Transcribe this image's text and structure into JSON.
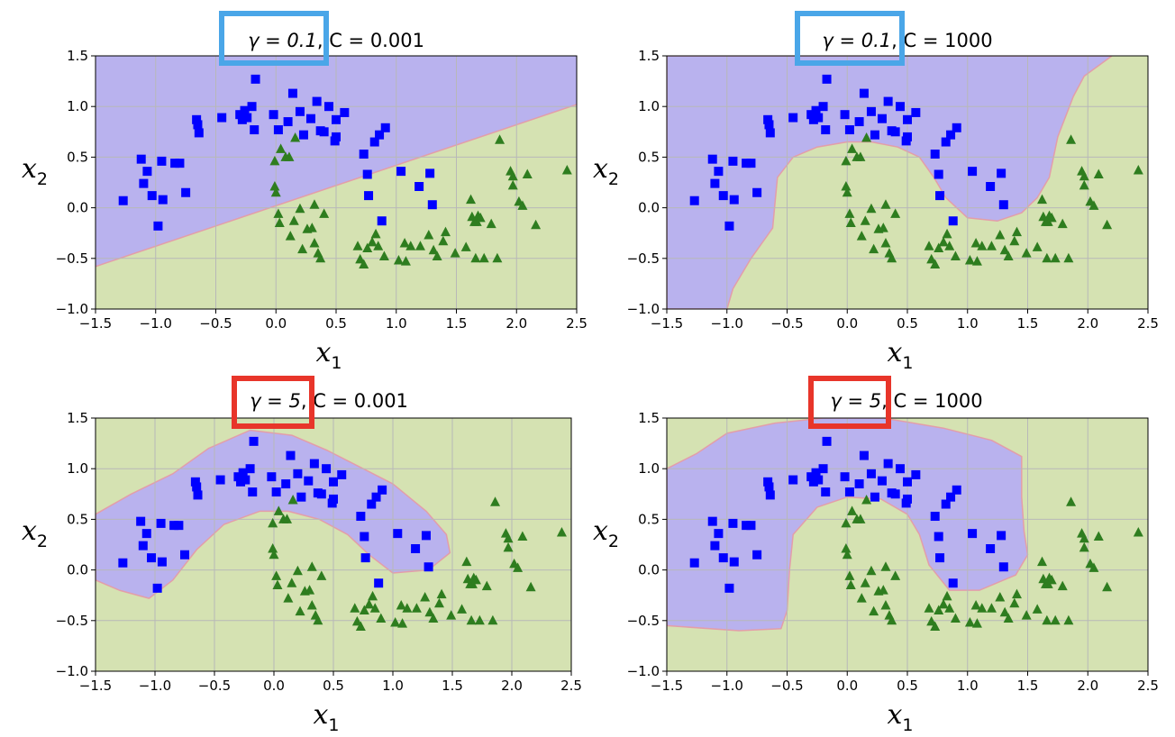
{
  "chart_data": [
    {
      "type": "scatter",
      "title": "γ = 0.1, C = 0.001",
      "gamma_label": "γ = 0.1",
      "c_label": "C = 0.001",
      "highlight_color": "#4aa6e8",
      "xlabel": "x",
      "xlabel_sub": "1",
      "ylabel": "x",
      "ylabel_sub": "2",
      "xlim": [
        -1.5,
        2.5
      ],
      "ylim": [
        -1.0,
        1.5
      ],
      "xticks": [
        "−1.5",
        "−1.0",
        "−0.5",
        "0.0",
        "0.5",
        "1.0",
        "1.5",
        "2.0",
        "2.5"
      ],
      "yticks": [
        "−1.0",
        "−0.5",
        "0.0",
        "0.5",
        "1.0",
        "1.5"
      ],
      "grid": true,
      "boundary": "linear",
      "boundary_points": [
        [
          -1.5,
          -0.58
        ],
        [
          2.5,
          1.02
        ]
      ]
    },
    {
      "type": "scatter",
      "title": "γ = 0.1, C = 1000",
      "gamma_label": "γ = 0.1",
      "c_label": "C = 1000",
      "highlight_color": "#4aa6e8",
      "xlabel": "x",
      "xlabel_sub": "1",
      "ylabel": "x",
      "ylabel_sub": "2",
      "xlim": [
        -1.5,
        2.5
      ],
      "ylim": [
        -1.0,
        1.5
      ],
      "xticks": [
        "−1.5",
        "−1.0",
        "−0.5",
        "0.0",
        "0.5",
        "1.0",
        "1.5",
        "2.0",
        "2.5"
      ],
      "yticks": [
        "−1.0",
        "−0.5",
        "0.0",
        "0.5",
        "1.0",
        "1.5"
      ],
      "grid": true,
      "boundary": "region",
      "blue_region": [
        [
          -1.5,
          1.5
        ],
        [
          2.2,
          1.5
        ],
        [
          1.97,
          1.3
        ],
        [
          1.88,
          1.1
        ],
        [
          1.75,
          0.7
        ],
        [
          1.68,
          0.3
        ],
        [
          1.58,
          0.1
        ],
        [
          1.45,
          -0.05
        ],
        [
          1.25,
          -0.13
        ],
        [
          1.0,
          -0.1
        ],
        [
          0.82,
          0.1
        ],
        [
          0.72,
          0.3
        ],
        [
          0.6,
          0.5
        ],
        [
          0.42,
          0.6
        ],
        [
          0.2,
          0.65
        ],
        [
          0.0,
          0.65
        ],
        [
          -0.25,
          0.6
        ],
        [
          -0.45,
          0.5
        ],
        [
          -0.58,
          0.3
        ],
        [
          -0.6,
          0.05
        ],
        [
          -0.62,
          -0.2
        ],
        [
          -0.8,
          -0.5
        ],
        [
          -0.95,
          -0.8
        ],
        [
          -1.0,
          -1.0
        ],
        [
          -1.5,
          -1.0
        ]
      ]
    },
    {
      "type": "scatter",
      "title": "γ = 5, C = 0.001",
      "gamma_label": "γ = 5",
      "c_label": "C = 0.001",
      "highlight_color": "#e8352a",
      "xlabel": "x",
      "xlabel_sub": "1",
      "ylabel": "x",
      "ylabel_sub": "2",
      "xlim": [
        -1.5,
        2.5
      ],
      "ylim": [
        -1.0,
        1.5
      ],
      "xticks": [
        "−1.5",
        "−1.0",
        "−0.5",
        "0.0",
        "0.5",
        "1.0",
        "1.5",
        "2.0",
        "2.5"
      ],
      "yticks": [
        "−1.0",
        "−0.5",
        "0.0",
        "0.5",
        "1.0",
        "1.5"
      ],
      "grid": true,
      "boundary": "region",
      "blue_region": [
        [
          -1.5,
          0.55
        ],
        [
          -1.2,
          0.75
        ],
        [
          -0.85,
          0.95
        ],
        [
          -0.55,
          1.2
        ],
        [
          -0.2,
          1.38
        ],
        [
          0.15,
          1.33
        ],
        [
          0.45,
          1.18
        ],
        [
          0.75,
          1.0
        ],
        [
          1.0,
          0.85
        ],
        [
          1.28,
          0.58
        ],
        [
          1.45,
          0.35
        ],
        [
          1.48,
          0.17
        ],
        [
          1.3,
          0.0
        ],
        [
          1.0,
          -0.03
        ],
        [
          0.8,
          0.15
        ],
        [
          0.62,
          0.35
        ],
        [
          0.38,
          0.5
        ],
        [
          0.12,
          0.58
        ],
        [
          -0.12,
          0.58
        ],
        [
          -0.42,
          0.45
        ],
        [
          -0.65,
          0.2
        ],
        [
          -0.85,
          -0.1
        ],
        [
          -1.05,
          -0.28
        ],
        [
          -1.3,
          -0.2
        ],
        [
          -1.5,
          -0.1
        ]
      ]
    },
    {
      "type": "scatter",
      "title": "γ = 5, C = 1000",
      "gamma_label": "γ = 5",
      "c_label": "C = 1000",
      "highlight_color": "#e8352a",
      "xlabel": "x",
      "xlabel_sub": "1",
      "ylabel": "x",
      "ylabel_sub": "2",
      "xlim": [
        -1.5,
        2.5
      ],
      "ylim": [
        -1.0,
        1.5
      ],
      "xticks": [
        "−1.5",
        "−1.0",
        "−0.5",
        "0.0",
        "0.5",
        "1.0",
        "1.5",
        "2.0",
        "2.5"
      ],
      "yticks": [
        "−1.0",
        "−0.5",
        "0.0",
        "0.5",
        "1.0",
        "1.5"
      ],
      "grid": true,
      "boundary": "region",
      "blue_region": [
        [
          -1.5,
          1.0
        ],
        [
          -1.25,
          1.15
        ],
        [
          -1.0,
          1.35
        ],
        [
          -0.6,
          1.45
        ],
        [
          -0.2,
          1.5
        ],
        [
          0.3,
          1.5
        ],
        [
          0.8,
          1.4
        ],
        [
          1.2,
          1.28
        ],
        [
          1.45,
          1.12
        ],
        [
          1.45,
          0.72
        ],
        [
          1.47,
          0.38
        ],
        [
          1.5,
          0.15
        ],
        [
          1.4,
          -0.05
        ],
        [
          1.1,
          -0.2
        ],
        [
          0.85,
          -0.2
        ],
        [
          0.68,
          0.05
        ],
        [
          0.6,
          0.35
        ],
        [
          0.5,
          0.55
        ],
        [
          0.28,
          0.7
        ],
        [
          0.0,
          0.72
        ],
        [
          -0.25,
          0.62
        ],
        [
          -0.45,
          0.35
        ],
        [
          -0.48,
          0.0
        ],
        [
          -0.5,
          -0.4
        ],
        [
          -0.55,
          -0.58
        ],
        [
          -0.9,
          -0.6
        ],
        [
          -1.5,
          -0.55
        ]
      ]
    }
  ],
  "series": [
    {
      "name": "",
      "marker": "square",
      "color": "#0000ff",
      "points": [
        [
          -1.27,
          0.07
        ],
        [
          -1.12,
          0.48
        ],
        [
          -1.1,
          0.24
        ],
        [
          -1.07,
          0.36
        ],
        [
          -1.03,
          0.12
        ],
        [
          -0.98,
          -0.18
        ],
        [
          -0.95,
          0.46
        ],
        [
          -0.94,
          0.08
        ],
        [
          -0.84,
          0.44
        ],
        [
          -0.8,
          0.44
        ],
        [
          -0.75,
          0.15
        ],
        [
          -0.66,
          0.87
        ],
        [
          -0.65,
          0.82
        ],
        [
          -0.64,
          0.74
        ],
        [
          -0.45,
          0.89
        ],
        [
          -0.3,
          0.92
        ],
        [
          -0.28,
          0.87
        ],
        [
          -0.26,
          0.96
        ],
        [
          -0.24,
          0.89
        ],
        [
          -0.2,
          1.0
        ],
        [
          -0.18,
          0.77
        ],
        [
          -0.17,
          1.27
        ],
        [
          -0.02,
          0.92
        ],
        [
          0.02,
          0.77
        ],
        [
          0.1,
          0.85
        ],
        [
          0.14,
          1.13
        ],
        [
          0.2,
          0.95
        ],
        [
          0.23,
          0.72
        ],
        [
          0.29,
          0.88
        ],
        [
          0.34,
          1.05
        ],
        [
          0.37,
          0.76
        ],
        [
          0.4,
          0.75
        ],
        [
          0.44,
          1.0
        ],
        [
          0.49,
          0.66
        ],
        [
          0.5,
          0.7
        ],
        [
          0.5,
          0.87
        ],
        [
          0.57,
          0.94
        ],
        [
          0.73,
          0.53
        ],
        [
          0.76,
          0.33
        ],
        [
          0.77,
          0.12
        ],
        [
          0.82,
          0.65
        ],
        [
          0.86,
          0.72
        ],
        [
          0.88,
          -0.13
        ],
        [
          0.91,
          0.79
        ],
        [
          1.04,
          0.36
        ],
        [
          1.19,
          0.21
        ],
        [
          1.28,
          0.34
        ],
        [
          1.3,
          0.03
        ]
      ]
    },
    {
      "name": "",
      "marker": "triangle",
      "color": "#2e7d1f",
      "points": [
        [
          -0.01,
          0.46
        ],
        [
          -0.01,
          0.21
        ],
        [
          0.0,
          0.15
        ],
        [
          0.02,
          -0.06
        ],
        [
          0.03,
          -0.15
        ],
        [
          0.04,
          0.58
        ],
        [
          0.08,
          0.5
        ],
        [
          0.11,
          0.5
        ],
        [
          0.12,
          -0.28
        ],
        [
          0.15,
          -0.13
        ],
        [
          0.16,
          0.69
        ],
        [
          0.2,
          -0.01
        ],
        [
          0.22,
          -0.41
        ],
        [
          0.26,
          -0.21
        ],
        [
          0.3,
          -0.2
        ],
        [
          0.32,
          -0.35
        ],
        [
          0.32,
          0.03
        ],
        [
          0.35,
          -0.45
        ],
        [
          0.37,
          -0.5
        ],
        [
          0.4,
          -0.06
        ],
        [
          0.68,
          -0.38
        ],
        [
          0.7,
          -0.51
        ],
        [
          0.73,
          -0.56
        ],
        [
          0.76,
          -0.4
        ],
        [
          0.8,
          -0.34
        ],
        [
          0.83,
          -0.26
        ],
        [
          0.85,
          -0.38
        ],
        [
          0.9,
          -0.48
        ],
        [
          1.02,
          -0.52
        ],
        [
          1.07,
          -0.35
        ],
        [
          1.08,
          -0.53
        ],
        [
          1.12,
          -0.38
        ],
        [
          1.2,
          -0.38
        ],
        [
          1.27,
          -0.27
        ],
        [
          1.31,
          -0.42
        ],
        [
          1.34,
          -0.48
        ],
        [
          1.39,
          -0.33
        ],
        [
          1.41,
          -0.24
        ],
        [
          1.49,
          -0.45
        ],
        [
          1.58,
          -0.39
        ],
        [
          1.62,
          0.08
        ],
        [
          1.63,
          -0.09
        ],
        [
          1.65,
          -0.14
        ],
        [
          1.66,
          -0.5
        ],
        [
          1.67,
          -0.14
        ],
        [
          1.68,
          -0.08
        ],
        [
          1.7,
          -0.1
        ],
        [
          1.73,
          -0.5
        ],
        [
          1.79,
          -0.16
        ],
        [
          1.84,
          -0.5
        ],
        [
          1.86,
          0.67
        ],
        [
          1.95,
          0.36
        ],
        [
          1.97,
          0.22
        ],
        [
          1.97,
          0.31
        ],
        [
          2.02,
          0.06
        ],
        [
          2.05,
          0.02
        ],
        [
          2.09,
          0.33
        ],
        [
          2.16,
          -0.17
        ],
        [
          2.42,
          0.37
        ]
      ]
    }
  ]
}
